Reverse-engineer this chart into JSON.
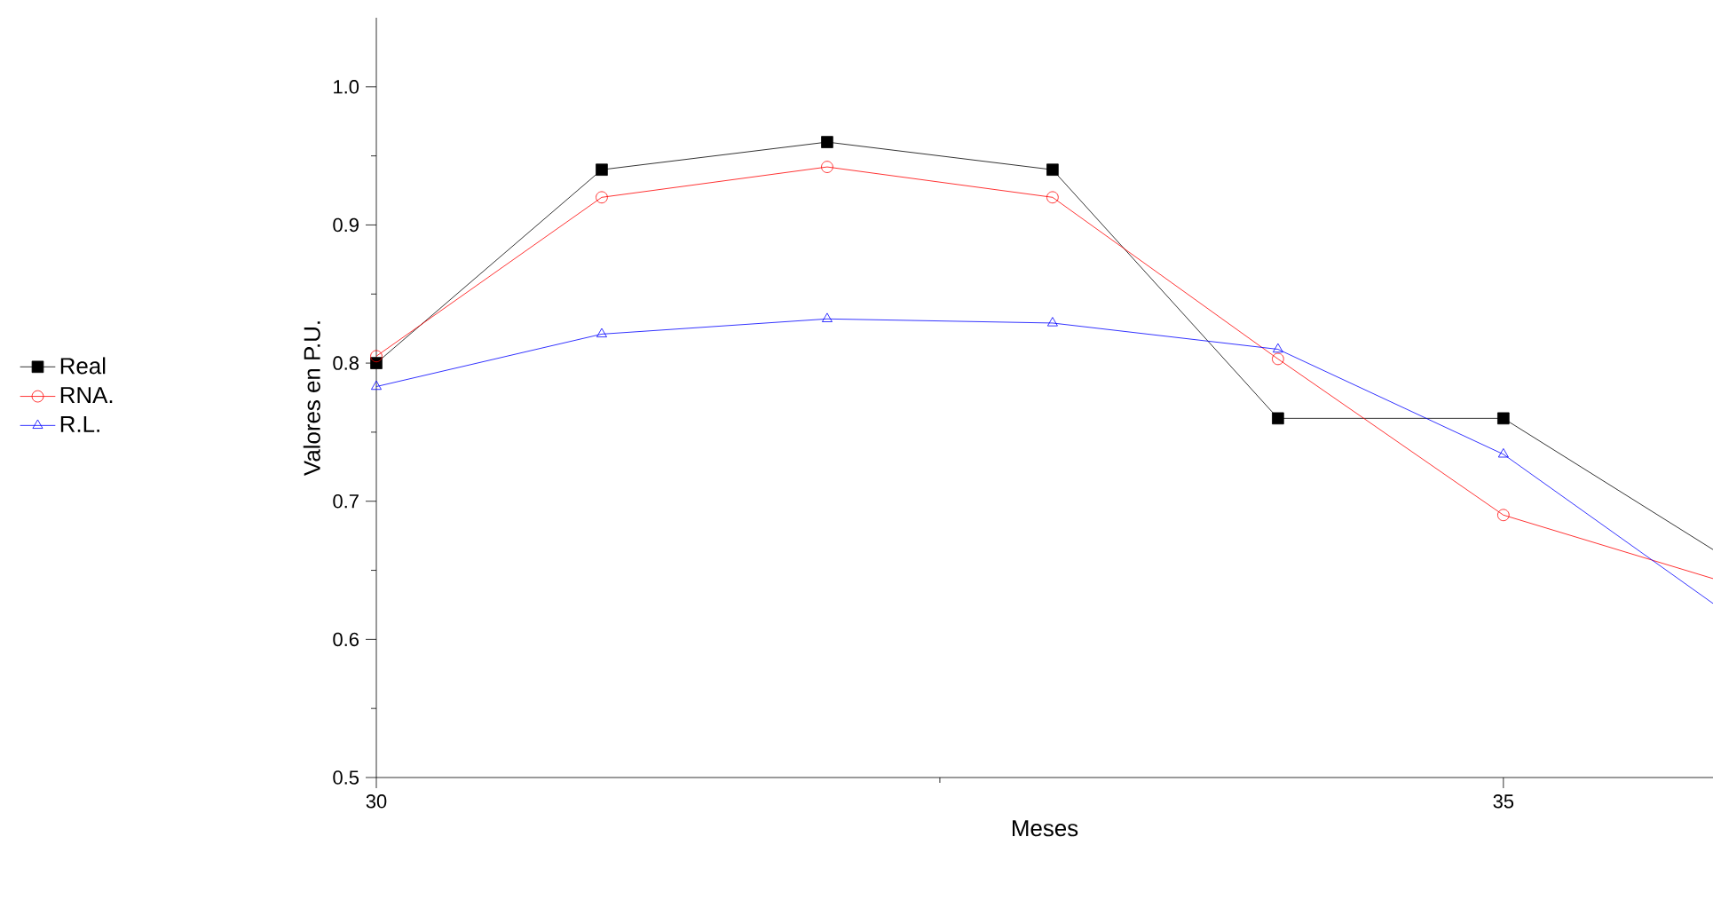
{
  "chart_data": {
    "type": "line",
    "xlabel": "Meses",
    "ylabel": "Valores en P.U.",
    "x": [
      30,
      31,
      32,
      33,
      34,
      35,
      35.93
    ],
    "xlim": [
      30,
      35.93
    ],
    "xticks": [
      30,
      35
    ],
    "ylim": [
      0.5,
      1.05
    ],
    "yticks": [
      0.5,
      0.6,
      0.7,
      0.8,
      0.9,
      {
        "value": 1.0,
        "label": "1.0"
      }
    ],
    "legend": "left",
    "grid": false,
    "series": [
      {
        "name": "Real",
        "color": "#000000",
        "marker": "square",
        "values": [
          0.8,
          0.94,
          0.96,
          0.94,
          0.76,
          0.76,
          0.665
        ]
      },
      {
        "name": "RNA.",
        "color": "#ff0000",
        "marker": "circle",
        "values": [
          0.805,
          0.92,
          0.942,
          0.92,
          0.803,
          0.69,
          0.644
        ]
      },
      {
        "name": "R.L.",
        "color": "#0000ff",
        "marker": "triangle",
        "values": [
          0.783,
          0.821,
          0.832,
          0.829,
          0.81,
          0.734,
          0.626
        ]
      }
    ]
  }
}
